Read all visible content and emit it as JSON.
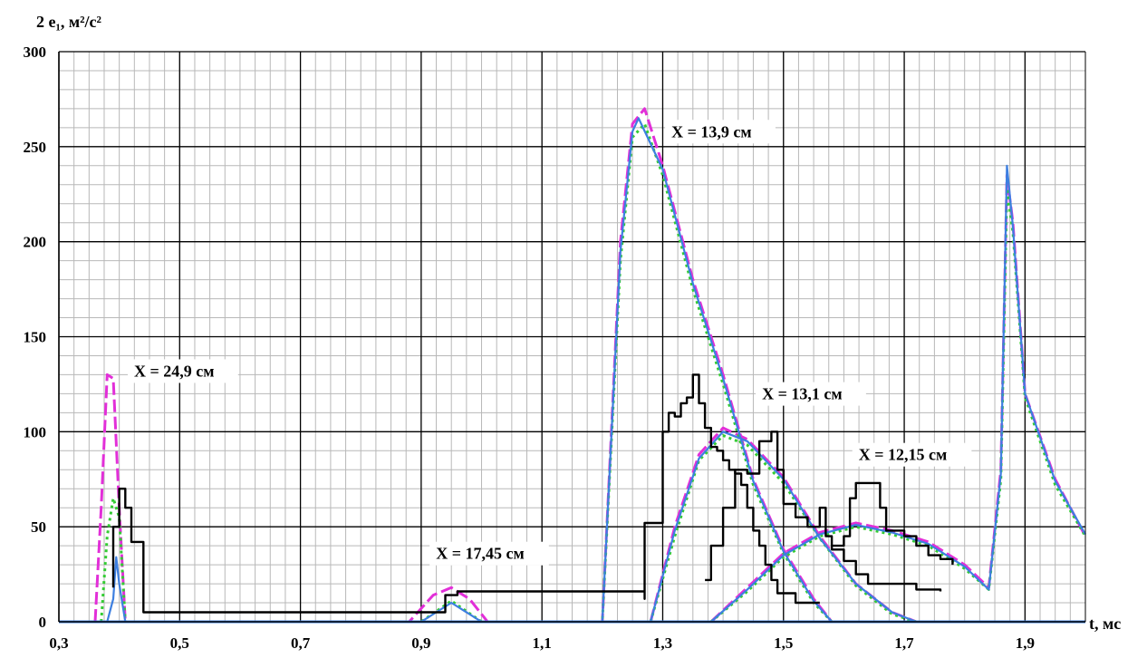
{
  "chart_data": {
    "type": "line",
    "ylabel": "2 e₁, м²/с²",
    "xlabel": "t, мс",
    "xlim": [
      0.3,
      2.0
    ],
    "ylim": [
      0,
      300
    ],
    "x_ticks": [
      "0,3",
      "0,5",
      "0,7",
      "0,9",
      "1,1",
      "1,3",
      "1,5",
      "1,7",
      "1,9"
    ],
    "y_ticks": [
      "0",
      "50",
      "100",
      "150",
      "200",
      "250",
      "300"
    ],
    "grid": true,
    "annotations": [
      {
        "text": "X = 24,9 см",
        "x": 0.42,
        "y": 130
      },
      {
        "text": "X = 17,45 см",
        "x": 0.92,
        "y": 34
      },
      {
        "text": "X = 13,9 см",
        "x": 1.31,
        "y": 256
      },
      {
        "text": "X = 13,1 см",
        "x": 1.46,
        "y": 118
      },
      {
        "text": "X = 12,15 см",
        "x": 1.62,
        "y": 86
      }
    ],
    "series": [
      {
        "color": "#e22fd8",
        "style": "dashed",
        "points": [
          [
            0.36,
            0
          ],
          [
            0.37,
            60
          ],
          [
            0.38,
            130
          ],
          [
            0.39,
            128
          ],
          [
            0.4,
            60
          ],
          [
            0.41,
            0
          ],
          [
            0.88,
            0
          ],
          [
            0.92,
            14
          ],
          [
            0.95,
            18
          ],
          [
            0.98,
            12
          ],
          [
            1.01,
            0
          ],
          [
            1.2,
            0
          ],
          [
            1.23,
            200
          ],
          [
            1.25,
            262
          ],
          [
            1.27,
            270
          ],
          [
            1.3,
            240
          ],
          [
            1.35,
            180
          ],
          [
            1.4,
            130
          ],
          [
            1.45,
            75
          ],
          [
            1.5,
            38
          ],
          [
            1.55,
            12
          ],
          [
            1.58,
            0
          ],
          [
            1.28,
            0
          ],
          [
            1.32,
            50
          ],
          [
            1.36,
            88
          ],
          [
            1.4,
            102
          ],
          [
            1.44,
            96
          ],
          [
            1.5,
            76
          ],
          [
            1.56,
            45
          ],
          [
            1.62,
            20
          ],
          [
            1.68,
            5
          ],
          [
            1.72,
            0
          ],
          [
            1.38,
            0
          ],
          [
            1.44,
            18
          ],
          [
            1.5,
            36
          ],
          [
            1.56,
            47
          ],
          [
            1.62,
            52
          ],
          [
            1.68,
            48
          ],
          [
            1.74,
            42
          ],
          [
            1.8,
            30
          ],
          [
            1.84,
            18
          ],
          [
            1.86,
            80
          ],
          [
            1.87,
            235
          ],
          [
            1.88,
            210
          ],
          [
            1.9,
            120
          ],
          [
            1.95,
            75
          ],
          [
            2.0,
            45
          ]
        ]
      },
      {
        "color": "#33cc33",
        "style": "dotted",
        "points": [
          [
            0.37,
            0
          ],
          [
            0.38,
            45
          ],
          [
            0.39,
            65
          ],
          [
            0.4,
            55
          ],
          [
            0.41,
            0
          ],
          [
            0.9,
            0
          ],
          [
            0.95,
            11
          ],
          [
            1.0,
            0
          ],
          [
            1.2,
            0
          ],
          [
            1.23,
            190
          ],
          [
            1.25,
            255
          ],
          [
            1.27,
            262
          ],
          [
            1.3,
            235
          ],
          [
            1.35,
            175
          ],
          [
            1.4,
            125
          ],
          [
            1.45,
            72
          ],
          [
            1.5,
            36
          ],
          [
            1.55,
            10
          ],
          [
            1.58,
            0
          ],
          [
            1.28,
            0
          ],
          [
            1.32,
            45
          ],
          [
            1.36,
            85
          ],
          [
            1.4,
            98
          ],
          [
            1.44,
            93
          ],
          [
            1.5,
            73
          ],
          [
            1.56,
            44
          ],
          [
            1.62,
            19
          ],
          [
            1.68,
            4
          ],
          [
            1.72,
            0
          ],
          [
            1.38,
            0
          ],
          [
            1.44,
            16
          ],
          [
            1.5,
            34
          ],
          [
            1.56,
            45
          ],
          [
            1.62,
            50
          ],
          [
            1.68,
            46
          ],
          [
            1.74,
            40
          ],
          [
            1.8,
            28
          ],
          [
            1.84,
            17
          ],
          [
            1.86,
            75
          ],
          [
            1.87,
            228
          ],
          [
            1.88,
            205
          ],
          [
            1.9,
            118
          ],
          [
            1.95,
            72
          ],
          [
            2.0,
            45
          ]
        ]
      },
      {
        "color": "#3d7fe0",
        "style": "solid",
        "points": [
          [
            0.38,
            0
          ],
          [
            0.39,
            12
          ],
          [
            0.395,
            34
          ],
          [
            0.4,
            20
          ],
          [
            0.41,
            0
          ],
          [
            0.9,
            0
          ],
          [
            0.95,
            10
          ],
          [
            1.0,
            0
          ],
          [
            1.2,
            0
          ],
          [
            1.23,
            195
          ],
          [
            1.25,
            258
          ],
          [
            1.26,
            265
          ],
          [
            1.3,
            238
          ],
          [
            1.35,
            178
          ],
          [
            1.4,
            128
          ],
          [
            1.45,
            74
          ],
          [
            1.5,
            37
          ],
          [
            1.55,
            11
          ],
          [
            1.58,
            0
          ],
          [
            1.28,
            0
          ],
          [
            1.32,
            48
          ],
          [
            1.36,
            86
          ],
          [
            1.4,
            100
          ],
          [
            1.44,
            95
          ],
          [
            1.5,
            75
          ],
          [
            1.56,
            44
          ],
          [
            1.62,
            20
          ],
          [
            1.68,
            5
          ],
          [
            1.72,
            0
          ],
          [
            1.38,
            0
          ],
          [
            1.44,
            17
          ],
          [
            1.5,
            35
          ],
          [
            1.56,
            46
          ],
          [
            1.62,
            51
          ],
          [
            1.68,
            47
          ],
          [
            1.74,
            41
          ],
          [
            1.8,
            29
          ],
          [
            1.84,
            17
          ],
          [
            1.86,
            78
          ],
          [
            1.87,
            240
          ],
          [
            1.88,
            208
          ],
          [
            1.9,
            120
          ],
          [
            1.95,
            74
          ],
          [
            2.0,
            46
          ]
        ]
      },
      {
        "color": "#000000",
        "style": "step",
        "points": [
          [
            0.39,
            18
          ],
          [
            0.39,
            50
          ],
          [
            0.4,
            70
          ],
          [
            0.41,
            60
          ],
          [
            0.42,
            42
          ],
          [
            0.43,
            42
          ],
          [
            0.44,
            5
          ],
          [
            0.94,
            14
          ],
          [
            0.96,
            16
          ],
          [
            1.01,
            16
          ],
          [
            1.27,
            12
          ],
          [
            1.27,
            52
          ],
          [
            1.29,
            52
          ],
          [
            1.3,
            100
          ],
          [
            1.31,
            110
          ],
          [
            1.32,
            108
          ],
          [
            1.33,
            115
          ],
          [
            1.34,
            118
          ],
          [
            1.35,
            130
          ],
          [
            1.36,
            115
          ],
          [
            1.37,
            102
          ],
          [
            1.38,
            92
          ],
          [
            1.39,
            90
          ],
          [
            1.4,
            85
          ],
          [
            1.41,
            80
          ],
          [
            1.42,
            78
          ],
          [
            1.43,
            72
          ],
          [
            1.44,
            60
          ],
          [
            1.45,
            48
          ],
          [
            1.46,
            40
          ],
          [
            1.47,
            30
          ],
          [
            1.48,
            22
          ],
          [
            1.49,
            15
          ],
          [
            1.52,
            10
          ],
          [
            1.56,
            10
          ],
          [
            1.37,
            22
          ],
          [
            1.38,
            40
          ],
          [
            1.4,
            60
          ],
          [
            1.42,
            80
          ],
          [
            1.44,
            78
          ],
          [
            1.46,
            95
          ],
          [
            1.48,
            100
          ],
          [
            1.49,
            80
          ],
          [
            1.5,
            62
          ],
          [
            1.52,
            55
          ],
          [
            1.54,
            50
          ],
          [
            1.56,
            60
          ],
          [
            1.57,
            45
          ],
          [
            1.58,
            38
          ],
          [
            1.6,
            32
          ],
          [
            1.62,
            25
          ],
          [
            1.64,
            20
          ],
          [
            1.68,
            20
          ],
          [
            1.72,
            17
          ],
          [
            1.76,
            16
          ],
          [
            1.58,
            40
          ],
          [
            1.6,
            45
          ],
          [
            1.61,
            65
          ],
          [
            1.62,
            73
          ],
          [
            1.64,
            73
          ],
          [
            1.66,
            60
          ],
          [
            1.67,
            48
          ],
          [
            1.7,
            45
          ],
          [
            1.72,
            40
          ],
          [
            1.74,
            35
          ],
          [
            1.76,
            33
          ],
          [
            1.78,
            30
          ]
        ]
      }
    ]
  }
}
